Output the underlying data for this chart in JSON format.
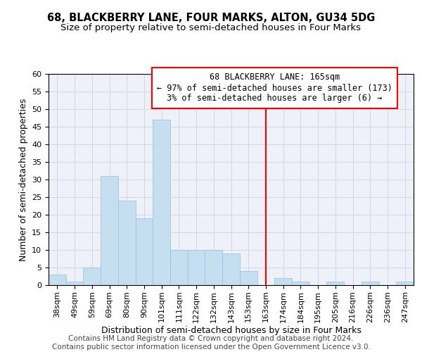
{
  "title": "68, BLACKBERRY LANE, FOUR MARKS, ALTON, GU34 5DG",
  "subtitle": "Size of property relative to semi-detached houses in Four Marks",
  "xlabel": "Distribution of semi-detached houses by size in Four Marks",
  "ylabel": "Number of semi-detached properties",
  "bin_labels": [
    "38sqm",
    "49sqm",
    "59sqm",
    "69sqm",
    "80sqm",
    "90sqm",
    "101sqm",
    "111sqm",
    "122sqm",
    "132sqm",
    "143sqm",
    "153sqm",
    "163sqm",
    "174sqm",
    "184sqm",
    "195sqm",
    "205sqm",
    "216sqm",
    "226sqm",
    "236sqm",
    "247sqm"
  ],
  "bar_heights": [
    3,
    1,
    5,
    31,
    24,
    19,
    47,
    10,
    10,
    10,
    9,
    4,
    0,
    2,
    1,
    0,
    1,
    0,
    1,
    0,
    1
  ],
  "bar_color": "#c6dff0",
  "bar_edge_color": "#a0c4e0",
  "vline_x_index": 12,
  "vline_color": "red",
  "ylim": [
    0,
    60
  ],
  "yticks": [
    0,
    5,
    10,
    15,
    20,
    25,
    30,
    35,
    40,
    45,
    50,
    55,
    60
  ],
  "annotation_title": "68 BLACKBERRY LANE: 165sqm",
  "annotation_line1": "← 97% of semi-detached houses are smaller (173)",
  "annotation_line2": "3% of semi-detached houses are larger (6) →",
  "footer1": "Contains HM Land Registry data © Crown copyright and database right 2024.",
  "footer2": "Contains public sector information licensed under the Open Government Licence v3.0.",
  "title_fontsize": 10.5,
  "subtitle_fontsize": 9.5,
  "axis_label_fontsize": 9,
  "tick_fontsize": 8,
  "annotation_fontsize": 8.5,
  "footer_fontsize": 7.5
}
